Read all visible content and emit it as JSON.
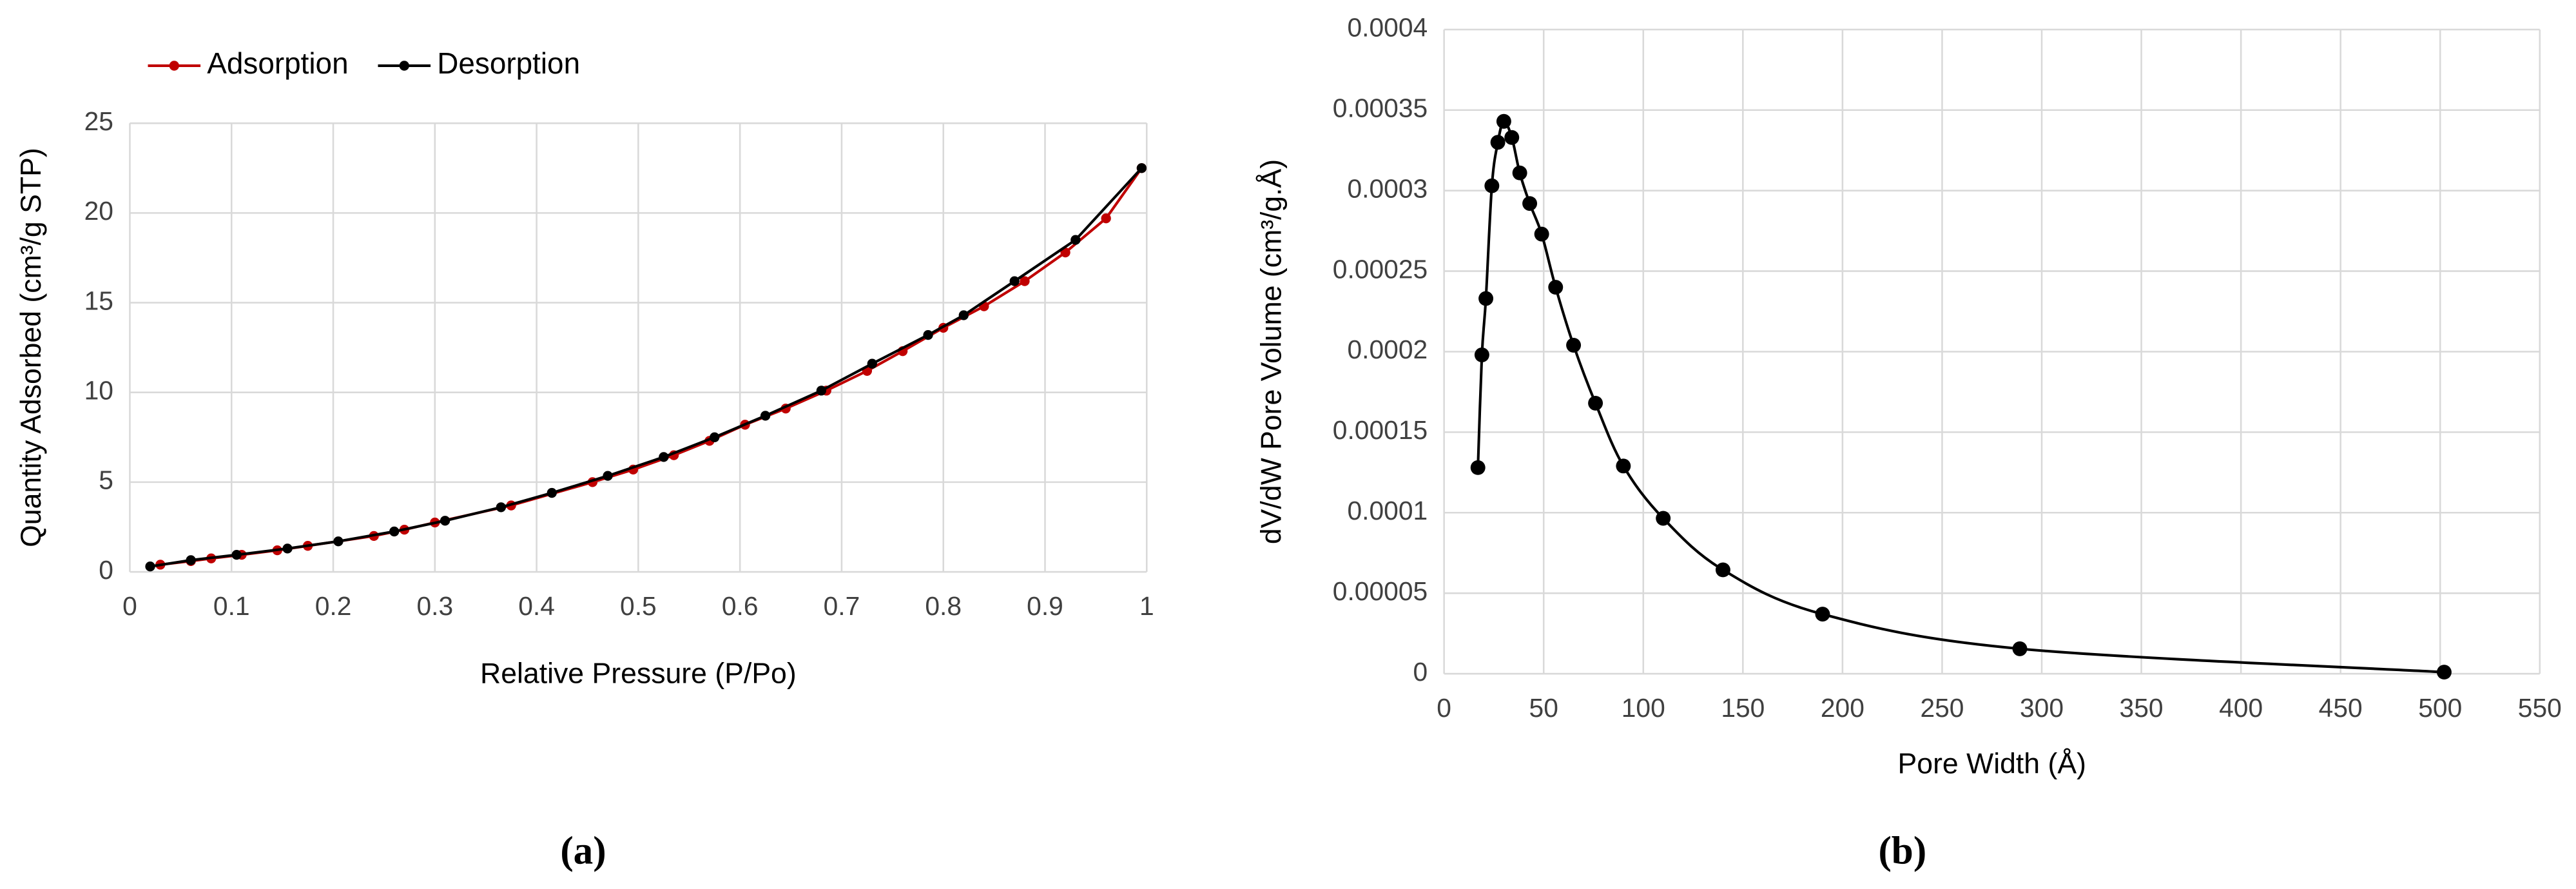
{
  "chart_data": [
    {
      "type": "line",
      "caption": "(a)",
      "x_label": "Relative Pressure (P/Po)",
      "y_label": "Quantity Adsorbed (cm³/g STP)",
      "xlim": [
        0,
        1
      ],
      "xticks": [
        0,
        0.1,
        0.2,
        0.3,
        0.4,
        0.5,
        0.6,
        0.7,
        0.8,
        0.9,
        1
      ],
      "ylim": [
        0,
        25
      ],
      "yticks": [
        0,
        5,
        10,
        15,
        20,
        25
      ],
      "grid": true,
      "legend": "top-left",
      "smooth": false,
      "series": [
        {
          "name": "Adsorption",
          "color": "#c00000",
          "marker_color": "#c00000",
          "x": [
            0.03,
            0.06,
            0.08,
            0.11,
            0.145,
            0.175,
            0.24,
            0.27,
            0.3,
            0.375,
            0.455,
            0.495,
            0.535,
            0.57,
            0.605,
            0.645,
            0.685,
            0.725,
            0.76,
            0.8,
            0.84,
            0.88,
            0.92,
            0.96,
            0.995
          ],
          "values": [
            0.4,
            0.6,
            0.75,
            0.95,
            1.2,
            1.45,
            2.0,
            2.35,
            2.75,
            3.7,
            5.0,
            5.7,
            6.5,
            7.3,
            8.2,
            9.1,
            10.1,
            11.2,
            12.3,
            13.6,
            14.8,
            16.2,
            17.8,
            19.7,
            22.5
          ]
        },
        {
          "name": "Desorption",
          "color": "#000000",
          "marker_color": "#000000",
          "x": [
            0.02,
            0.06,
            0.105,
            0.155,
            0.205,
            0.26,
            0.31,
            0.365,
            0.415,
            0.47,
            0.525,
            0.575,
            0.625,
            0.68,
            0.73,
            0.785,
            0.82,
            0.87,
            0.93,
            0.995
          ],
          "values": [
            0.3,
            0.65,
            0.95,
            1.3,
            1.7,
            2.25,
            2.85,
            3.6,
            4.4,
            5.35,
            6.4,
            7.5,
            8.7,
            10.1,
            11.6,
            13.2,
            14.3,
            16.2,
            18.5,
            22.5
          ]
        }
      ]
    },
    {
      "type": "line",
      "caption": "(b)",
      "x_label": "Pore Width (Å)",
      "y_label": "dV/dW Pore Volume (cm³/g.Å)",
      "xlim": [
        0,
        550
      ],
      "xticks": [
        0,
        50,
        100,
        150,
        200,
        250,
        300,
        350,
        400,
        450,
        500,
        550
      ],
      "ylim": [
        0,
        0.0004
      ],
      "yticks": [
        0,
        5e-05,
        0.0001,
        0.00015,
        0.0002,
        0.00025,
        0.0003,
        0.00035,
        0.0004
      ],
      "grid": true,
      "smooth": true,
      "series": [
        {
          "color": "#000000",
          "marker_color": "#000000",
          "x": [
            17,
            19,
            21,
            24,
            27,
            30,
            34,
            38,
            43,
            49,
            56,
            65,
            76,
            90,
            110,
            140,
            190,
            289,
            502
          ],
          "values": [
            0.000128,
            0.000198,
            0.000233,
            0.000303,
            0.00033,
            0.000343,
            0.000333,
            0.000311,
            0.000292,
            0.000273,
            0.00024,
            0.000204,
            0.000168,
            0.000129,
            9.65e-05,
            6.45e-05,
            3.7e-05,
            1.55e-05,
            1e-06
          ]
        }
      ]
    }
  ]
}
